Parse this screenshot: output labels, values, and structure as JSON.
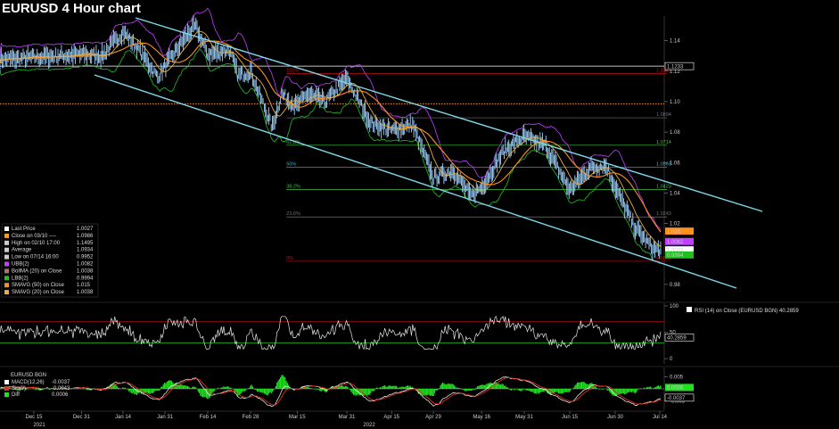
{
  "title": "EURUSD 4 Hour chart",
  "colors": {
    "background": "#000000",
    "price": "#9fd3ff",
    "upper_band": "#c040ff",
    "lower_band": "#20c020",
    "smavg50": "#ff9020",
    "smavg20": "#e8b040",
    "channel": "#7fd8e8",
    "fib_red": "#c01010",
    "fib_gray": "#707070",
    "fib_green": "#40c040",
    "fib_cyan": "#30b8c8",
    "orange_dotted": "#ff9a20",
    "rsi_line": "#e8e8e8",
    "rsi_upper": "#c01010",
    "rsi_lower": "#20c020",
    "macd_line": "#ffffff",
    "sig_line": "#e03020",
    "diff_bar": "#20e020"
  },
  "chart_data": [
    {
      "type": "line",
      "panel": "price",
      "title": "EURUSD 4 Hour chart",
      "x_ticks": [
        "Dec 15",
        "Dec 31",
        "Jan 14",
        "Jan 31",
        "Feb 14",
        "Feb 28",
        "Mar 15",
        "Mar 31",
        "Apr 15",
        "Apr 29",
        "May 16",
        "May 31",
        "Jun 15",
        "Jun 30",
        "Jul 14"
      ],
      "year_labels": [
        "2021",
        "2022"
      ],
      "y_ticks": [
        1.14,
        1.12,
        1.1,
        1.08,
        1.06,
        1.04,
        1.02,
        0.98
      ],
      "ylim": [
        0.97,
        1.155
      ],
      "price_path": [
        [
          "Dec 08",
          1.128
        ],
        [
          "Dec 15",
          1.129
        ],
        [
          "Dec 31",
          1.131
        ],
        [
          "Jan 07",
          1.13
        ],
        [
          "Jan 14",
          1.146
        ],
        [
          "Jan 21",
          1.133
        ],
        [
          "Jan 28",
          1.116
        ],
        [
          "Jan 31",
          1.123
        ],
        [
          "Feb 07",
          1.143
        ],
        [
          "Feb 10",
          1.1495
        ],
        [
          "Feb 14",
          1.131
        ],
        [
          "Feb 21",
          1.134
        ],
        [
          "Feb 24",
          1.117
        ],
        [
          "Feb 28",
          1.12
        ],
        [
          "Mar 07",
          1.083
        ],
        [
          "Mar 10",
          1.105
        ],
        [
          "Mar 15",
          1.097
        ],
        [
          "Mar 18",
          1.105
        ],
        [
          "Mar 24",
          1.1
        ],
        [
          "Mar 31",
          1.115
        ],
        [
          "Apr 08",
          1.086
        ],
        [
          "Apr 15",
          1.081
        ],
        [
          "Apr 22",
          1.085
        ],
        [
          "Apr 29",
          1.05
        ],
        [
          "May 06",
          1.055
        ],
        [
          "May 12",
          1.038
        ],
        [
          "May 16",
          1.044
        ],
        [
          "May 24",
          1.068
        ],
        [
          "May 31",
          1.077
        ],
        [
          "Jun 07",
          1.071
        ],
        [
          "Jun 15",
          1.042
        ],
        [
          "Jun 22",
          1.057
        ],
        [
          "Jun 27",
          1.058
        ],
        [
          "Jun 30",
          1.044
        ],
        [
          "Jul 06",
          1.018
        ],
        [
          "Jul 12",
          1.003
        ],
        [
          "Jul 14",
          1.0027
        ]
      ],
      "legend": [
        {
          "label": "Last Price",
          "value": "1.0027",
          "color": "#ffffff"
        },
        {
          "label": "Close on 03/10 ----",
          "value": "1.0986",
          "color": "#ff9a20"
        },
        {
          "label": "High on 02/10 17:00",
          "value": "1.1495",
          "color": "#cccccc"
        },
        {
          "label": "Average",
          "value": "1.0934",
          "color": "#cccccc"
        },
        {
          "label": "Low on 07/14 16:00",
          "value": "0.9952",
          "color": "#cccccc"
        },
        {
          "label": "UBB(2)",
          "value": "1.0082",
          "color": "#c040ff"
        },
        {
          "label": "BollMA (20) on Close",
          "value": "1.0038",
          "color": "#b07070"
        },
        {
          "label": "LBB(2)",
          "value": "0.9994",
          "color": "#20c020"
        },
        {
          "label": "SMAVG (50) on Close",
          "value": "1.015",
          "color": "#ff9020"
        },
        {
          "label": "SMAVG (20) on Close",
          "value": "1.0038",
          "color": "#e8b040"
        }
      ],
      "fib_levels": [
        {
          "label": "100%",
          "value": 1.1185,
          "right_label": "1.1185",
          "color": "#c01010"
        },
        {
          "label": "",
          "value": 1.0894,
          "right_label": "1.0894",
          "color": "#707070"
        },
        {
          "label": "61.8%",
          "value": 1.0714,
          "right_label": "1.0714",
          "color": "#40c040"
        },
        {
          "label": "50%",
          "value": 1.0569,
          "right_label": "1.0569",
          "color": "#30b8c8"
        },
        {
          "label": "38.2%",
          "value": 1.0423,
          "right_label": "1.0423",
          "color": "#40c040"
        },
        {
          "label": "23.6%",
          "value": 1.0243,
          "right_label": "1.0243",
          "color": "#707070"
        },
        {
          "label": "0%",
          "value": 0.9952,
          "right_label": "0.9952",
          "color": "#c01010"
        }
      ],
      "white_level": 1.1233,
      "orange_dotted_level": 1.0986,
      "right_badges": [
        {
          "value": 1.1233,
          "label": "1.1233",
          "bg": "#000000",
          "fg": "#ffffff",
          "border": "#ffffff"
        },
        {
          "value": 1.015,
          "label": "1.015",
          "bg": "#ff9020",
          "fg": "#000000"
        },
        {
          "value": 1.0082,
          "label": "1.0082",
          "bg": "#c040ff",
          "fg": "#000000"
        },
        {
          "value": 1.0027,
          "label": "1.0027",
          "bg": "#ffffff",
          "fg": "#000000"
        },
        {
          "value": 0.9994,
          "label": "0.9994",
          "bg": "#20c020",
          "fg": "#000000"
        }
      ]
    },
    {
      "type": "line",
      "panel": "rsi",
      "legend_label": "RSI (14) on Close (EURUSD BGN) 40.2859",
      "y_ticks": [
        100,
        50,
        0
      ],
      "ylim": [
        -10,
        105
      ],
      "upper_level": 70,
      "lower_level": 30,
      "last_value": "40.2859"
    },
    {
      "type": "line",
      "panel": "macd",
      "source_label": "EURUSD BGN",
      "legend": [
        {
          "label": "MACD(12,26)",
          "value": "-0.0037",
          "color": "#ffffff"
        },
        {
          "label": "Sig(9)",
          "value": "-0.0043",
          "color": "#e03020"
        },
        {
          "label": "Diff",
          "value": "0.0006",
          "color": "#20e020"
        }
      ],
      "y_ticks": [
        0.005,
        -0.005
      ],
      "ylim": [
        -0.009,
        0.009
      ],
      "badges": [
        {
          "value": 0.0006,
          "label": "0.0006",
          "bg": "#20e020",
          "fg": "#000000"
        },
        {
          "value": -0.0037,
          "label": "-0.0037",
          "bg": "#000000",
          "fg": "#ffffff",
          "border": "#ffffff"
        }
      ]
    }
  ]
}
